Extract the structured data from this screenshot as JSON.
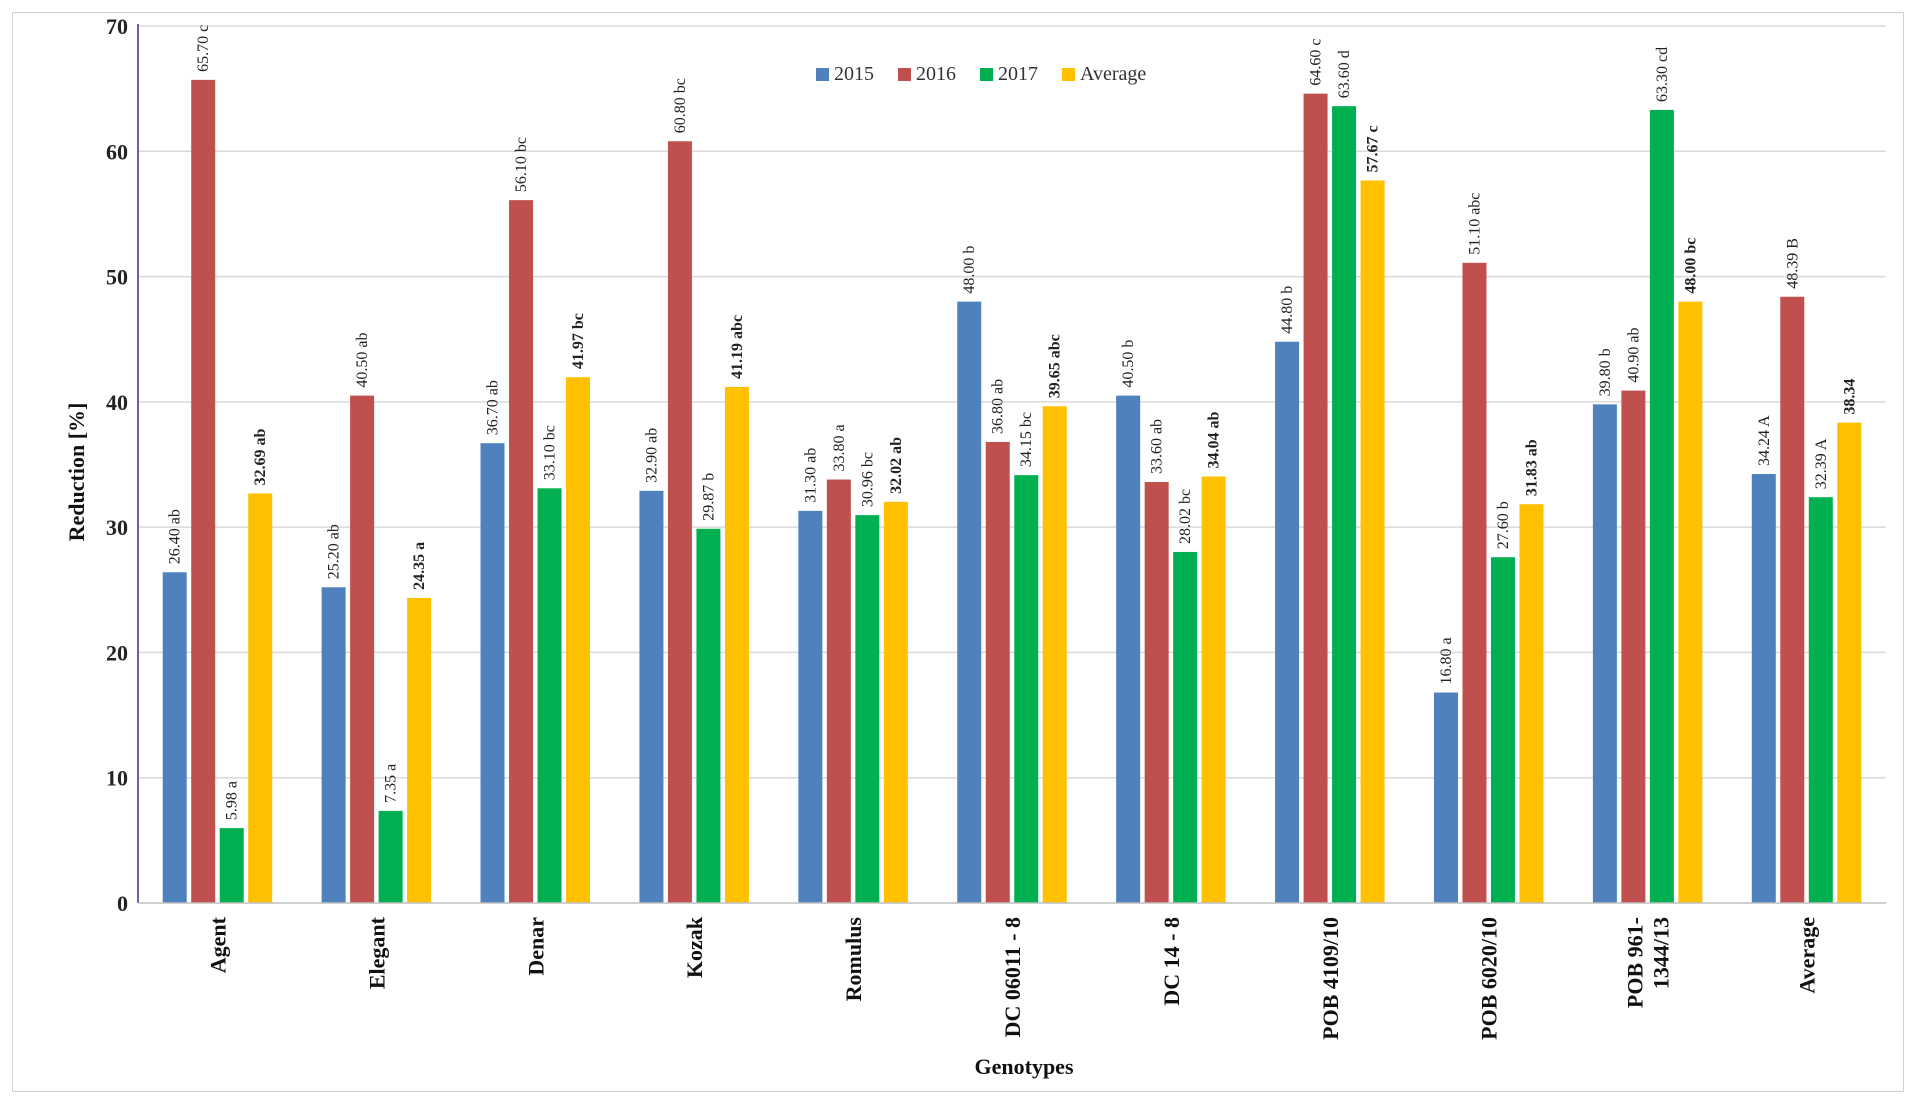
{
  "chart_data": {
    "type": "bar",
    "title": "",
    "xlabel": "Genotypes",
    "ylabel": "Reduction [%]",
    "ylim": [
      0,
      70
    ],
    "yticks": [
      0,
      10,
      20,
      30,
      40,
      50,
      60,
      70
    ],
    "ytick_labels": [
      "0",
      "10",
      "20",
      "30",
      "40",
      "50",
      "60",
      "70"
    ],
    "grid": true,
    "legend_position": "top-center",
    "categories": [
      [
        "Agent"
      ],
      [
        "Elegant"
      ],
      [
        "Denar"
      ],
      [
        "Kozak"
      ],
      [
        "Romulus"
      ],
      [
        "DC 06011 - 8"
      ],
      [
        "DC 14 - 8"
      ],
      [
        "POB 4109/10"
      ],
      [
        "POB 6020/10"
      ],
      [
        "POB 961-",
        "1344/13"
      ],
      [
        "Average"
      ]
    ],
    "series": [
      {
        "name": "2015",
        "color": "#4f81bd",
        "bold_labels": false,
        "values": [
          26.4,
          25.2,
          36.7,
          32.9,
          31.3,
          48.0,
          40.5,
          44.8,
          16.8,
          39.8,
          34.24
        ],
        "labels": [
          "26.40 ab",
          "25.20 ab",
          "36.70 ab",
          "32.90 ab",
          "31.30 ab",
          "48.00 b",
          "40.50 b",
          "44.80 b",
          "16.80 a",
          "39.80 b",
          "34.24 A"
        ]
      },
      {
        "name": "2016",
        "color": "#c0504d",
        "bold_labels": false,
        "values": [
          65.7,
          40.5,
          56.1,
          60.8,
          33.8,
          36.8,
          33.6,
          64.6,
          51.1,
          40.9,
          48.39
        ],
        "labels": [
          "65.70 c",
          "40.50 ab",
          "56.10 bc",
          "60.80 bc",
          "33.80 a",
          "36.80 ab",
          "33.60 ab",
          "64.60 c",
          "51.10 abc",
          "40.90 ab",
          "48.39 B"
        ]
      },
      {
        "name": "2017",
        "color": "#00b050",
        "bold_labels": false,
        "values": [
          5.98,
          7.35,
          33.1,
          29.87,
          30.96,
          34.15,
          28.02,
          63.6,
          27.6,
          63.3,
          32.39
        ],
        "labels": [
          "5.98 a",
          "7.35 a",
          "33.10 bc",
          "29.87 b",
          "30.96 bc",
          "34.15 bc",
          "28.02 bc",
          "63.60 d",
          "27.60 b",
          "63.30 cd",
          "32.39 A"
        ]
      },
      {
        "name": "Average",
        "color": "#ffc000",
        "bold_labels": true,
        "values": [
          32.69,
          24.35,
          41.97,
          41.19,
          32.02,
          39.65,
          34.04,
          57.67,
          31.83,
          48.0,
          38.34
        ],
        "labels": [
          "32.69 ab",
          "24.35 a",
          "41.97 bc",
          "41.19 abc",
          "32.02 ab",
          "39.65 abc",
          "34.04 ab",
          "57.67 c",
          "31.83 ab",
          "48.00 bc",
          "38.34"
        ]
      }
    ]
  }
}
